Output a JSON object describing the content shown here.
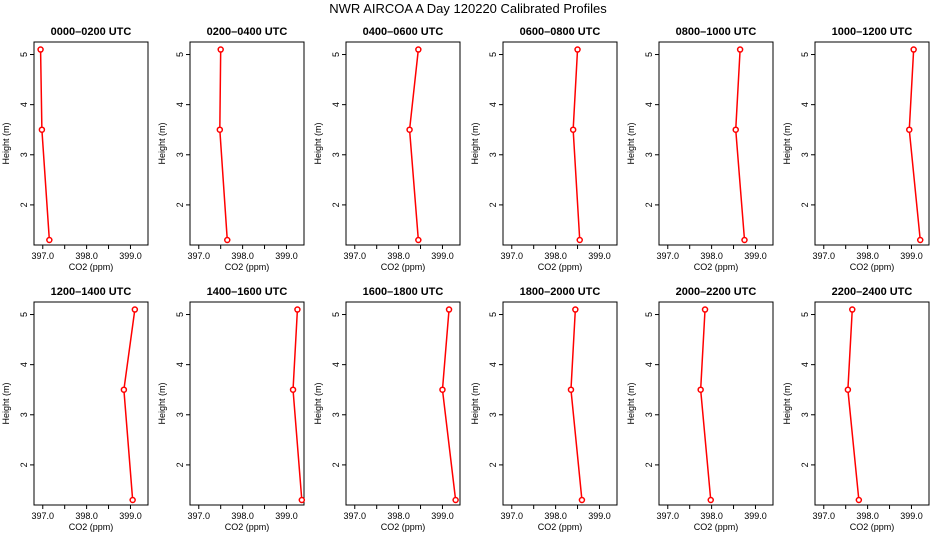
{
  "title": "NWR AIRCOA A  Day 120220  Calibrated Profiles",
  "xlabel": "CO2 (ppm)",
  "ylabel": "Height (m)",
  "x_ticks": [
    "397.0",
    "398.0",
    "399.0"
  ],
  "y_ticks": [
    "2",
    "3",
    "4",
    "5"
  ],
  "colors": {
    "series": "#ff0000",
    "axis": "#000000"
  },
  "chart_data": [
    {
      "type": "line",
      "title": "0000–0200 UTC",
      "heights": [
        5.1,
        3.5,
        1.3
      ],
      "co2": [
        396.95,
        396.98,
        397.15
      ],
      "xlim": [
        396.8,
        399.4
      ],
      "ylim": [
        1.2,
        5.25
      ]
    },
    {
      "type": "line",
      "title": "0200–0400 UTC",
      "heights": [
        5.1,
        3.5,
        1.3
      ],
      "co2": [
        397.5,
        397.48,
        397.65
      ],
      "xlim": [
        396.8,
        399.4
      ],
      "ylim": [
        1.2,
        5.25
      ]
    },
    {
      "type": "line",
      "title": "0400–0600 UTC",
      "heights": [
        5.1,
        3.5,
        1.3
      ],
      "co2": [
        398.45,
        398.25,
        398.45
      ],
      "xlim": [
        396.8,
        399.4
      ],
      "ylim": [
        1.2,
        5.25
      ]
    },
    {
      "type": "line",
      "title": "0600–0800 UTC",
      "heights": [
        5.1,
        3.5,
        1.3
      ],
      "co2": [
        398.5,
        398.4,
        398.55
      ],
      "xlim": [
        396.8,
        399.4
      ],
      "ylim": [
        1.2,
        5.25
      ]
    },
    {
      "type": "line",
      "title": "0800–1000 UTC",
      "heights": [
        5.1,
        3.5,
        1.3
      ],
      "co2": [
        398.65,
        398.55,
        398.75
      ],
      "xlim": [
        396.8,
        399.4
      ],
      "ylim": [
        1.2,
        5.25
      ]
    },
    {
      "type": "line",
      "title": "1000–1200 UTC",
      "heights": [
        5.1,
        3.5,
        1.3
      ],
      "co2": [
        399.05,
        398.95,
        399.2
      ],
      "xlim": [
        396.8,
        399.4
      ],
      "ylim": [
        1.2,
        5.25
      ]
    },
    {
      "type": "line",
      "title": "1200–1400 UTC",
      "heights": [
        5.1,
        3.5,
        1.3
      ],
      "co2": [
        399.1,
        398.85,
        399.05
      ],
      "xlim": [
        396.8,
        399.4
      ],
      "ylim": [
        1.2,
        5.25
      ]
    },
    {
      "type": "line",
      "title": "1400–1600 UTC",
      "heights": [
        5.1,
        3.5,
        1.3
      ],
      "co2": [
        399.25,
        399.15,
        399.35
      ],
      "xlim": [
        396.8,
        399.4
      ],
      "ylim": [
        1.2,
        5.25
      ]
    },
    {
      "type": "line",
      "title": "1600–1800 UTC",
      "heights": [
        5.1,
        3.5,
        1.3
      ],
      "co2": [
        399.15,
        399.0,
        399.3
      ],
      "xlim": [
        396.8,
        399.4
      ],
      "ylim": [
        1.2,
        5.25
      ]
    },
    {
      "type": "line",
      "title": "1800–2000 UTC",
      "heights": [
        5.1,
        3.5,
        1.3
      ],
      "co2": [
        398.45,
        398.35,
        398.6
      ],
      "xlim": [
        396.8,
        399.4
      ],
      "ylim": [
        1.2,
        5.25
      ]
    },
    {
      "type": "line",
      "title": "2000–2200 UTC",
      "heights": [
        5.1,
        3.5,
        1.3
      ],
      "co2": [
        397.85,
        397.75,
        397.98
      ],
      "xlim": [
        396.8,
        399.4
      ],
      "ylim": [
        1.2,
        5.25
      ]
    },
    {
      "type": "line",
      "title": "2200–2400 UTC",
      "heights": [
        5.1,
        3.5,
        1.3
      ],
      "co2": [
        397.65,
        397.55,
        397.8
      ],
      "xlim": [
        396.8,
        399.4
      ],
      "ylim": [
        1.2,
        5.25
      ]
    }
  ]
}
